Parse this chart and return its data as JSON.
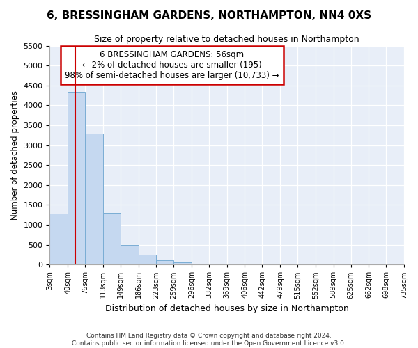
{
  "title": "6, BRESSINGHAM GARDENS, NORTHAMPTON, NN4 0XS",
  "subtitle": "Size of property relative to detached houses in Northampton",
  "xlabel": "Distribution of detached houses by size in Northampton",
  "ylabel": "Number of detached properties",
  "footer_line1": "Contains HM Land Registry data © Crown copyright and database right 2024.",
  "footer_line2": "Contains public sector information licensed under the Open Government Licence v3.0.",
  "annotation_title": "6 BRESSINGHAM GARDENS: 56sqm",
  "annotation_line1": "← 2% of detached houses are smaller (195)",
  "annotation_line2": "98% of semi-detached houses are larger (10,733) →",
  "property_size_sqm": 56,
  "bar_color": "#c5d8f0",
  "bar_edge_color": "#7aadd4",
  "vline_color": "#cc0000",
  "annotation_box_color": "#cc0000",
  "plot_bg_color": "#e8eef8",
  "bins": [
    3,
    40,
    76,
    113,
    149,
    186,
    223,
    259,
    296,
    332,
    369,
    406,
    442,
    479,
    515,
    552,
    589,
    625,
    662,
    698,
    735
  ],
  "bin_labels": [
    "3sqm",
    "40sqm",
    "76sqm",
    "113sqm",
    "149sqm",
    "186sqm",
    "223sqm",
    "259sqm",
    "296sqm",
    "332sqm",
    "369sqm",
    "406sqm",
    "442sqm",
    "479sqm",
    "515sqm",
    "552sqm",
    "589sqm",
    "625sqm",
    "662sqm",
    "698sqm",
    "735sqm"
  ],
  "counts": [
    1270,
    4340,
    3290,
    1300,
    490,
    240,
    100,
    60,
    0,
    0,
    0,
    0,
    0,
    0,
    0,
    0,
    0,
    0,
    0,
    0
  ],
  "ylim": [
    0,
    5500
  ],
  "yticks": [
    0,
    500,
    1000,
    1500,
    2000,
    2500,
    3000,
    3500,
    4000,
    4500,
    5000,
    5500
  ]
}
